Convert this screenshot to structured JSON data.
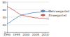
{
  "chart_data": {
    "type": "line",
    "x": [
      1990,
      1991,
      1992,
      1993,
      1994,
      1995,
      1996,
      1997,
      1998,
      1999,
      2000,
      2001,
      2002,
      2003,
      2004,
      2005,
      2006,
      2007,
      2008,
      2009,
      2010,
      2011,
      2012
    ],
    "series": [
      {
        "name": "Mehrweganteil",
        "color": "#4f81bd",
        "values": [
          22,
          25,
          28,
          32,
          35,
          38,
          42,
          44,
          46,
          47,
          48,
          49,
          50,
          51,
          52,
          52,
          53,
          53,
          54,
          54,
          55,
          55,
          56
        ]
      },
      {
        "name": "Einweganteil",
        "color": "#c0504d",
        "values": [
          68,
          66,
          63,
          60,
          57,
          53,
          50,
          47,
          45,
          44,
          43,
          42,
          41,
          40,
          39,
          38,
          38,
          37,
          37,
          36,
          36,
          35,
          35
        ]
      }
    ],
    "xlim": [
      1990,
      2012
    ],
    "xticks": [
      1990,
      1995,
      2000,
      2005,
      2010
    ],
    "ylim": [
      0,
      80
    ],
    "yticks": [
      0,
      20,
      40,
      60,
      80
    ],
    "grid": true,
    "legend": "right"
  }
}
